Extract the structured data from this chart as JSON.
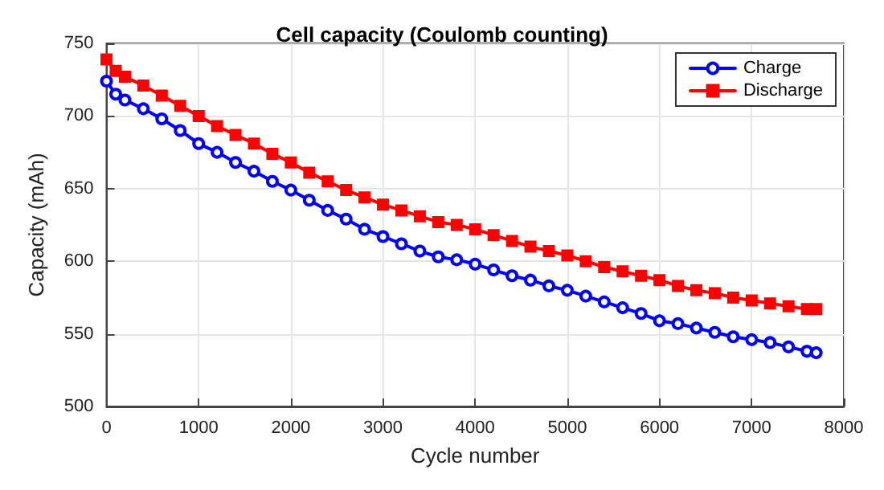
{
  "chart_data": {
    "type": "line",
    "title": "Cell capacity (Coulomb counting)",
    "xlabel": "Cycle number",
    "ylabel": "Capacity (mAh)",
    "x": [
      0,
      100,
      200,
      400,
      600,
      800,
      1000,
      1200,
      1400,
      1600,
      1800,
      2000,
      2200,
      2400,
      2600,
      2800,
      3000,
      3200,
      3400,
      3600,
      3800,
      4000,
      4200,
      4400,
      4600,
      4800,
      5000,
      5200,
      5400,
      5600,
      5800,
      6000,
      6200,
      6400,
      6600,
      6800,
      7000,
      7200,
      7400,
      7600,
      7700
    ],
    "series": [
      {
        "name": "Charge",
        "color": "#0000ff",
        "marker": "circle",
        "values": [
          724,
          715,
          711,
          705,
          698,
          690,
          681,
          675,
          668,
          662,
          655,
          649,
          642,
          635,
          629,
          622,
          617,
          612,
          607,
          603,
          601,
          598,
          594,
          590,
          587,
          583,
          580,
          576,
          572,
          568,
          564,
          559,
          557,
          554,
          551,
          548,
          546,
          544,
          541,
          538,
          537
        ]
      },
      {
        "name": "Discharge",
        "color": "#ff0000",
        "marker": "square",
        "values": [
          739,
          731,
          727,
          721,
          714,
          707,
          700,
          693,
          687,
          681,
          674,
          668,
          661,
          655,
          649,
          644,
          639,
          635,
          631,
          627,
          625,
          622,
          618,
          614,
          610,
          607,
          604,
          600,
          596,
          593,
          590,
          587,
          583,
          580,
          578,
          575,
          573,
          571,
          569,
          567,
          567
        ]
      }
    ],
    "xlim": [
      0,
      8000
    ],
    "xticks": [
      0,
      1000,
      2000,
      3000,
      4000,
      5000,
      6000,
      7000,
      8000
    ],
    "ylim": [
      500,
      750
    ],
    "yticks": [
      500,
      550,
      600,
      650,
      700,
      750
    ],
    "grid": true,
    "legend": "top right",
    "line_style": "solid"
  }
}
